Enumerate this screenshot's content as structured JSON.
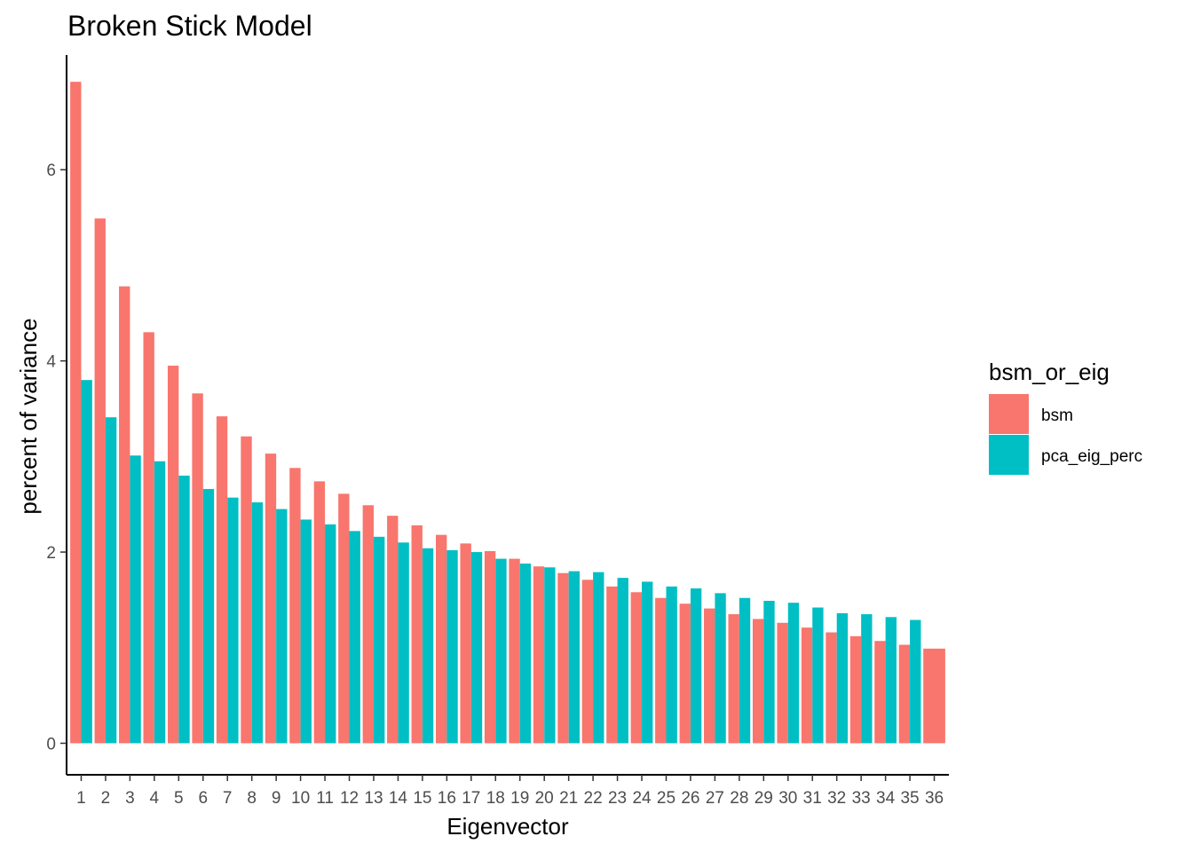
{
  "chart_data": {
    "type": "bar",
    "title": "Broken Stick Model",
    "xlabel": "Eigenvector",
    "ylabel": "percent of variance",
    "ylim": [
      -0.33,
      7.2
    ],
    "yticks": [
      0,
      2,
      4,
      6
    ],
    "grid": false,
    "legend": {
      "title": "bsm_or_eig",
      "position": "right"
    },
    "categories": [
      "1",
      "2",
      "3",
      "4",
      "5",
      "6",
      "7",
      "8",
      "9",
      "10",
      "11",
      "12",
      "13",
      "14",
      "15",
      "16",
      "17",
      "18",
      "19",
      "20",
      "21",
      "22",
      "23",
      "24",
      "25",
      "26",
      "27",
      "28",
      "29",
      "30",
      "31",
      "32",
      "33",
      "34",
      "35",
      "36"
    ],
    "series": [
      {
        "name": "bsm",
        "color": "#F8766D",
        "values": [
          6.92,
          5.49,
          4.78,
          4.3,
          3.95,
          3.66,
          3.42,
          3.21,
          3.03,
          2.88,
          2.74,
          2.61,
          2.49,
          2.38,
          2.28,
          2.18,
          2.09,
          2.01,
          1.93,
          1.85,
          1.78,
          1.71,
          1.64,
          1.58,
          1.52,
          1.46,
          1.41,
          1.35,
          1.3,
          1.26,
          1.21,
          1.16,
          1.12,
          1.07,
          1.03,
          0.99
        ]
      },
      {
        "name": "pca_eig_perc",
        "color": "#00BFC4",
        "values": [
          3.8,
          3.41,
          3.01,
          2.95,
          2.8,
          2.66,
          2.57,
          2.52,
          2.45,
          2.34,
          2.29,
          2.22,
          2.16,
          2.1,
          2.04,
          2.02,
          2.0,
          1.93,
          1.88,
          1.84,
          1.8,
          1.79,
          1.73,
          1.69,
          1.64,
          1.62,
          1.57,
          1.52,
          1.49,
          1.47,
          1.42,
          1.36,
          1.35,
          1.32,
          1.29,
          0
        ]
      }
    ]
  }
}
